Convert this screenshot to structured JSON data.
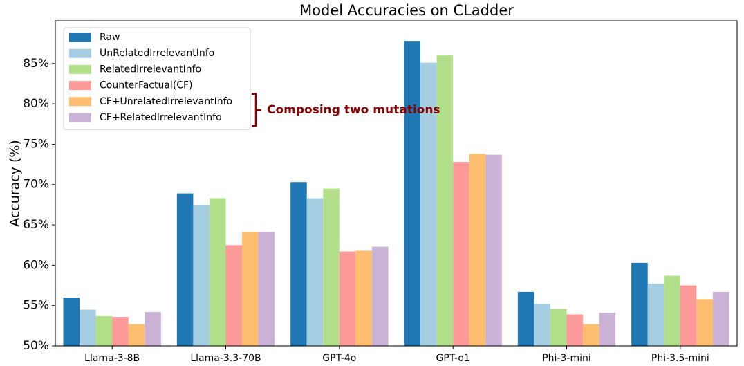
{
  "chart_data": {
    "type": "bar",
    "title": "Model Accuracies on CLadder",
    "ylabel": "Accuracy (%)",
    "categories": [
      "Llama-3-8B",
      "Llama-3.3-70B",
      "GPT-4o",
      "GPT-o1",
      "Phi-3-mini",
      "Phi-3.5-mini"
    ],
    "series": [
      {
        "name": "Raw",
        "color": "#1f77b4",
        "values": [
          56.0,
          68.9,
          70.3,
          87.8,
          56.7,
          60.3
        ]
      },
      {
        "name": "UnRelatedIrrelevantInfo",
        "color": "#a6cee3",
        "values": [
          54.5,
          67.5,
          68.3,
          85.1,
          55.2,
          57.7
        ]
      },
      {
        "name": "RelatedIrrelevantInfo",
        "color": "#b2df8a",
        "values": [
          53.7,
          68.3,
          69.5,
          86.0,
          54.6,
          58.7
        ]
      },
      {
        "name": "CounterFactual(CF)",
        "color": "#fb9a99",
        "values": [
          53.6,
          62.5,
          61.7,
          72.8,
          53.9,
          57.5
        ]
      },
      {
        "name": "CF+UnrelatedIrrelevantInfo",
        "color": "#fdbf6f",
        "values": [
          52.7,
          64.1,
          61.8,
          73.8,
          52.7,
          55.8
        ]
      },
      {
        "name": "CF+RelatedIrrelevantInfo",
        "color": "#cab2d6",
        "values": [
          54.2,
          64.1,
          62.3,
          73.7,
          54.1,
          56.7
        ]
      }
    ],
    "ylim": [
      50,
      90.3
    ],
    "yticks": [
      {
        "value": 50,
        "label": "50%"
      },
      {
        "value": 55,
        "label": "55%"
      },
      {
        "value": 60,
        "label": "60%"
      },
      {
        "value": 65,
        "label": "65%"
      },
      {
        "value": 70,
        "label": "70%"
      },
      {
        "value": 75,
        "label": "75%"
      },
      {
        "value": 80,
        "label": "80%"
      },
      {
        "value": 85,
        "label": "85%"
      }
    ],
    "legend": "upper left",
    "annotation": "Composing two mutations",
    "annotation_color": "#8b0000"
  }
}
